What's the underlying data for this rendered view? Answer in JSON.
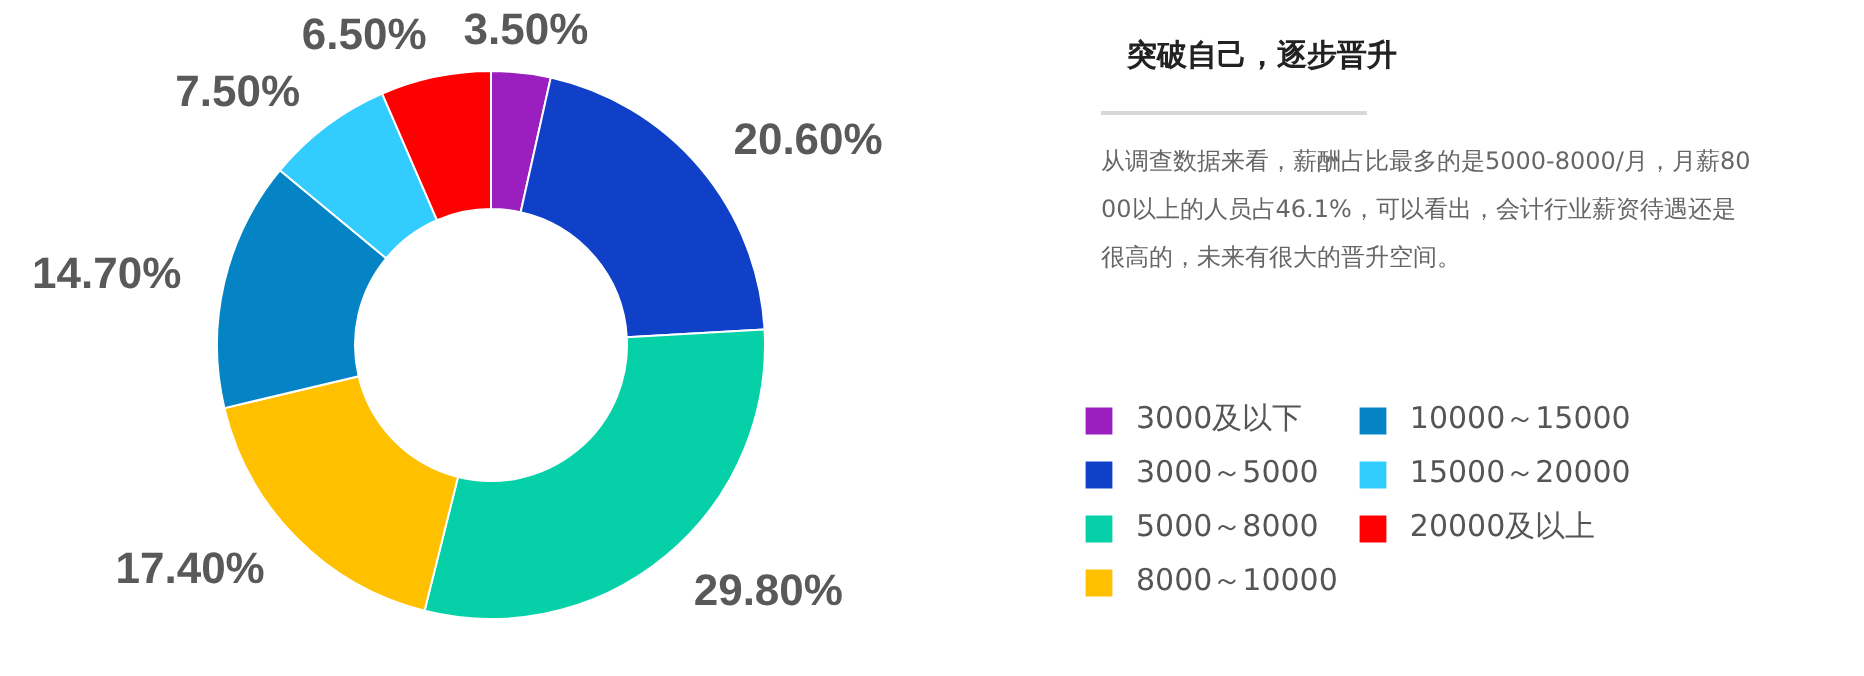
{
  "chart_data": {
    "type": "donut",
    "title": "突破自己，逐步晋升",
    "annotations": [
      "从调查数据来看，薪酬占比最多的是5000-8000/月，月薪8000以上的人员占46.1%，可以看出，会计行业薪资待遇还是很高的，未来有很大的晋升空间。"
    ],
    "categories": [
      "3000及以下",
      "3000～5000",
      "5000～8000",
      "8000～10000",
      "10000～15000",
      "15000～20000",
      "20000及以上"
    ],
    "values": [
      3.5,
      20.6,
      29.8,
      17.4,
      14.7,
      7.5,
      6.5
    ],
    "value_labels": [
      "3.50%",
      "20.60%",
      "29.80%",
      "17.40%",
      "14.70%",
      "7.50%",
      "6.50%"
    ],
    "colors": [
      "#9b1fbf",
      "#1040c8",
      "#06d0a8",
      "#ffc000",
      "#0484c4",
      "#33ccff",
      "#ff0000"
    ],
    "legend": "right"
  }
}
